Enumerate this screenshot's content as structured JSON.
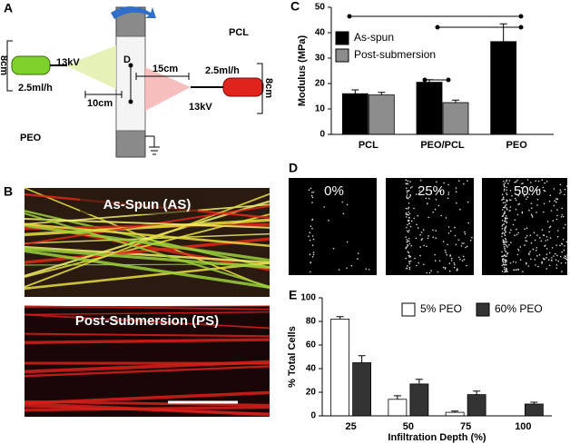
{
  "figure": {
    "panel_a": {
      "label": "A",
      "pcl": "PCL",
      "peo": "PEO",
      "left_height": "8cm",
      "left_voltage": "13kV",
      "left_rate": "2.5ml/h",
      "diameter": "D",
      "right_distance": "15cm",
      "left_distance": "10cm",
      "right_rate": "2.5ml/h",
      "right_voltage": "13kV",
      "right_height": "8cm"
    },
    "panel_b": {
      "label": "B",
      "top_caption": "As-Spun (AS)",
      "bottom_caption": "Post-Submersion (PS)"
    },
    "panel_d": {
      "label": "D",
      "captions": [
        "0%",
        "25%",
        "50%"
      ]
    }
  },
  "chart_data": [
    {
      "type": "bar",
      "panel": "C",
      "ylabel": "Modulus (MPa)",
      "categories": [
        "PCL",
        "PEO/PCL",
        "PEO"
      ],
      "series": [
        {
          "name": "As-spun",
          "color": "#000000",
          "values": [
            16,
            20.5,
            36.5
          ],
          "errors": [
            1.5,
            1,
            7
          ]
        },
        {
          "name": "Post-submersion",
          "color": "#8c8c8c",
          "values": [
            15.5,
            12.5,
            null
          ],
          "errors": [
            1,
            1,
            null
          ]
        }
      ],
      "ylim": [
        0,
        50
      ],
      "yticks": [
        0,
        10,
        20,
        30,
        40,
        50
      ],
      "legend": "upper left"
    },
    {
      "type": "bar",
      "panel": "E",
      "ylabel": "% Total Cells",
      "xlabel": "Infiltration Depth (%)",
      "categories": [
        "25",
        "50",
        "75",
        "100"
      ],
      "series": [
        {
          "name": "5% PEO",
          "color": "#ffffff",
          "values": [
            82,
            14,
            3,
            0
          ],
          "errors": [
            2,
            3,
            1,
            0
          ]
        },
        {
          "name": "60% PEO",
          "color": "#333333",
          "values": [
            45,
            27,
            18,
            10
          ],
          "errors": [
            6,
            4,
            3,
            1.5
          ]
        }
      ],
      "ylim": [
        0,
        100
      ],
      "yticks": [
        0,
        20,
        40,
        60,
        80,
        100
      ],
      "legend": "upper right"
    }
  ]
}
